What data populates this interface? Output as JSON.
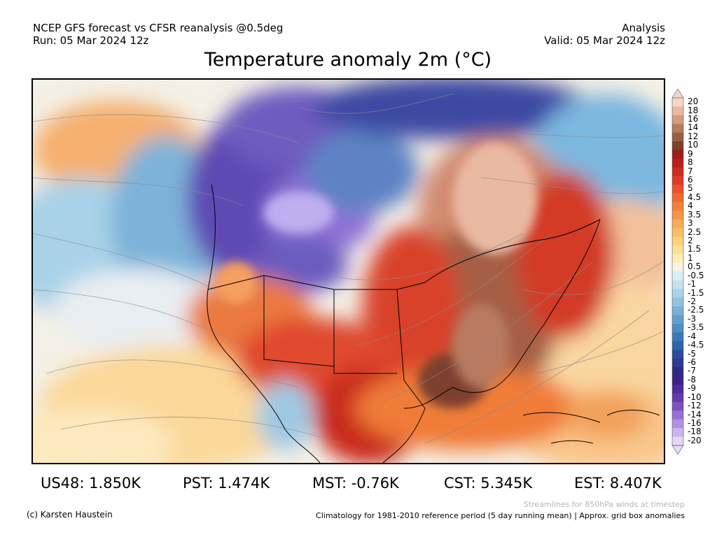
{
  "header": {
    "left_line1": "NCEP GFS forecast vs CFSR reanalysis @0.5deg",
    "left_line2": "Run: 05 Mar 2024 12z",
    "right_line1": "Analysis",
    "right_line2": "Valid: 05 Mar 2024 12z"
  },
  "title": "Temperature anomaly 2m (°C)",
  "colorbar": {
    "ticks": [
      "20",
      "18",
      "16",
      "14",
      "12",
      "10",
      "9",
      "8",
      "7",
      "6",
      "5",
      "4.5",
      "4",
      "3.5",
      "3",
      "2.5",
      "2",
      "1.5",
      "1",
      "0.5",
      "-0.5",
      "-1",
      "-1.5",
      "-2",
      "-2.5",
      "-3",
      "-3.5",
      "-4",
      "-4.5",
      "-5",
      "-6",
      "-7",
      "-8",
      "-9",
      "-10",
      "-12",
      "-14",
      "-16",
      "-18",
      "-20"
    ],
    "colors": [
      "#f6d6c8",
      "#eab9a2",
      "#d69a7f",
      "#b97a5e",
      "#9b5b44",
      "#7d3f2f",
      "#9e1b16",
      "#b81f18",
      "#cf2a1f",
      "#df3a25",
      "#e8532c",
      "#ee6a33",
      "#f2803a",
      "#f59743",
      "#f8ad52",
      "#f9c166",
      "#fad27e",
      "#fbe198",
      "#fceeba",
      "#f7f4ea",
      "#dcedf5",
      "#c5e2ef",
      "#abd3e8",
      "#92c3df",
      "#79b2d6",
      "#62a0cc",
      "#4d8dc2",
      "#3b79b6",
      "#2f63a8",
      "#2c4c99",
      "#2d3a8d",
      "#2e2a7f",
      "#3b2389",
      "#4e2c9a",
      "#623aad",
      "#7a52c2",
      "#9570d3",
      "#b192e2",
      "#cbb5ee",
      "#e4d8f7"
    ]
  },
  "stats": [
    {
      "label": "US48: 1.850K"
    },
    {
      "label": "PST: 1.474K"
    },
    {
      "label": "MST: -0.76K"
    },
    {
      "label": "CST: 5.345K"
    },
    {
      "label": "EST: 8.407K"
    }
  ],
  "footer": {
    "credit": "(c) Karsten Haustein",
    "streamlines": "Streamlines for 850hPa winds at timestep",
    "climatology": "Climatology for 1981-2010 reference period (5 day running mean) | Approx. grid box anomalies"
  }
}
